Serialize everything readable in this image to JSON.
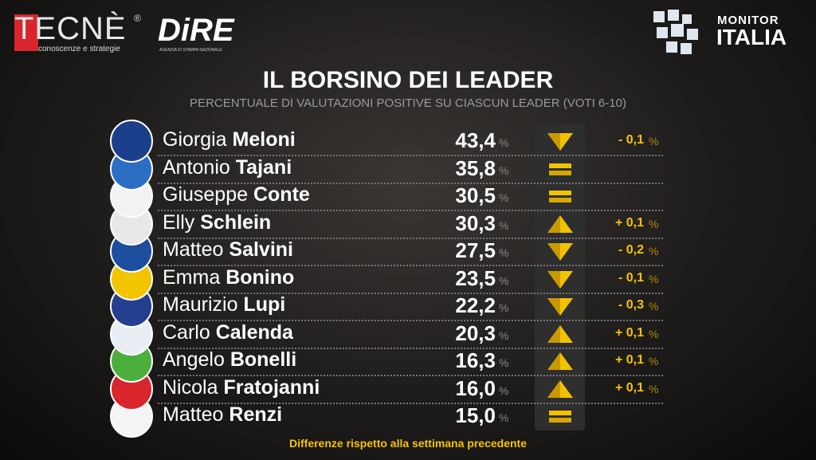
{
  "header": {
    "brand_left": "TECNÈ",
    "brand_left_mark": "®",
    "brand_left_tagline": "conoscenze e strategie",
    "brand_mid": "DiRE",
    "brand_mid_tagline": "AGENZIA DI STAMPA NAZIONALE",
    "brand_right_top": "MONITOR",
    "brand_right_bottom": "ITALIA"
  },
  "title": "IL BORSINO DEI LEADER",
  "subtitle": "PERCENTUALE DI VALUTAZIONI POSITIVE SU CIASCUN LEADER (VOTI 6-10)",
  "table": {
    "rows": [
      {
        "first_name": "Giorgia",
        "last_name": "Meloni",
        "value": "43,4",
        "unit": "%",
        "trend": "down",
        "change": "- 0,1",
        "change_unit": "%",
        "logo_color": "#1c3f8c"
      },
      {
        "first_name": "Antonio",
        "last_name": "Tajani",
        "value": "35,8",
        "unit": "%",
        "trend": "same",
        "change": null,
        "change_unit": null,
        "logo_color": "#2a6fc4"
      },
      {
        "first_name": "Giuseppe",
        "last_name": "Conte",
        "value": "30,5",
        "unit": "%",
        "trend": "same",
        "change": null,
        "change_unit": null,
        "logo_color": "#f2f2f2"
      },
      {
        "first_name": "Elly",
        "last_name": "Schlein",
        "value": "30,3",
        "unit": "%",
        "trend": "up",
        "change": "+ 0,1",
        "change_unit": "%",
        "logo_color": "#e8e8e8"
      },
      {
        "first_name": "Matteo",
        "last_name": "Salvini",
        "value": "27,5",
        "unit": "%",
        "trend": "down",
        "change": "- 0,2",
        "change_unit": "%",
        "logo_color": "#1d4f9e"
      },
      {
        "first_name": "Emma",
        "last_name": "Bonino",
        "value": "23,5",
        "unit": "%",
        "trend": "down",
        "change": "- 0,1",
        "change_unit": "%",
        "logo_color": "#f3c400"
      },
      {
        "first_name": "Maurizio",
        "last_name": "Lupi",
        "value": "22,2",
        "unit": "%",
        "trend": "down",
        "change": "- 0,3",
        "change_unit": "%",
        "logo_color": "#243f8f"
      },
      {
        "first_name": "Carlo",
        "last_name": "Calenda",
        "value": "20,3",
        "unit": "%",
        "trend": "up",
        "change": "+ 0,1",
        "change_unit": "%",
        "logo_color": "#e9eef5"
      },
      {
        "first_name": "Angelo",
        "last_name": "Bonelli",
        "value": "16,3",
        "unit": "%",
        "trend": "up",
        "change": "+ 0,1",
        "change_unit": "%",
        "logo_color": "#4caf3c"
      },
      {
        "first_name": "Nicola",
        "last_name": "Fratojanni",
        "value": "16,0",
        "unit": "%",
        "trend": "up",
        "change": "+ 0,1",
        "change_unit": "%",
        "logo_color": "#d8262c"
      },
      {
        "first_name": "Matteo",
        "last_name": "Renzi",
        "value": "15,0",
        "unit": "%",
        "trend": "same",
        "change": null,
        "change_unit": null,
        "logo_color": "#f4f4f4"
      }
    ]
  },
  "footnote": "Differenze rispetto alla settimana precedente"
}
